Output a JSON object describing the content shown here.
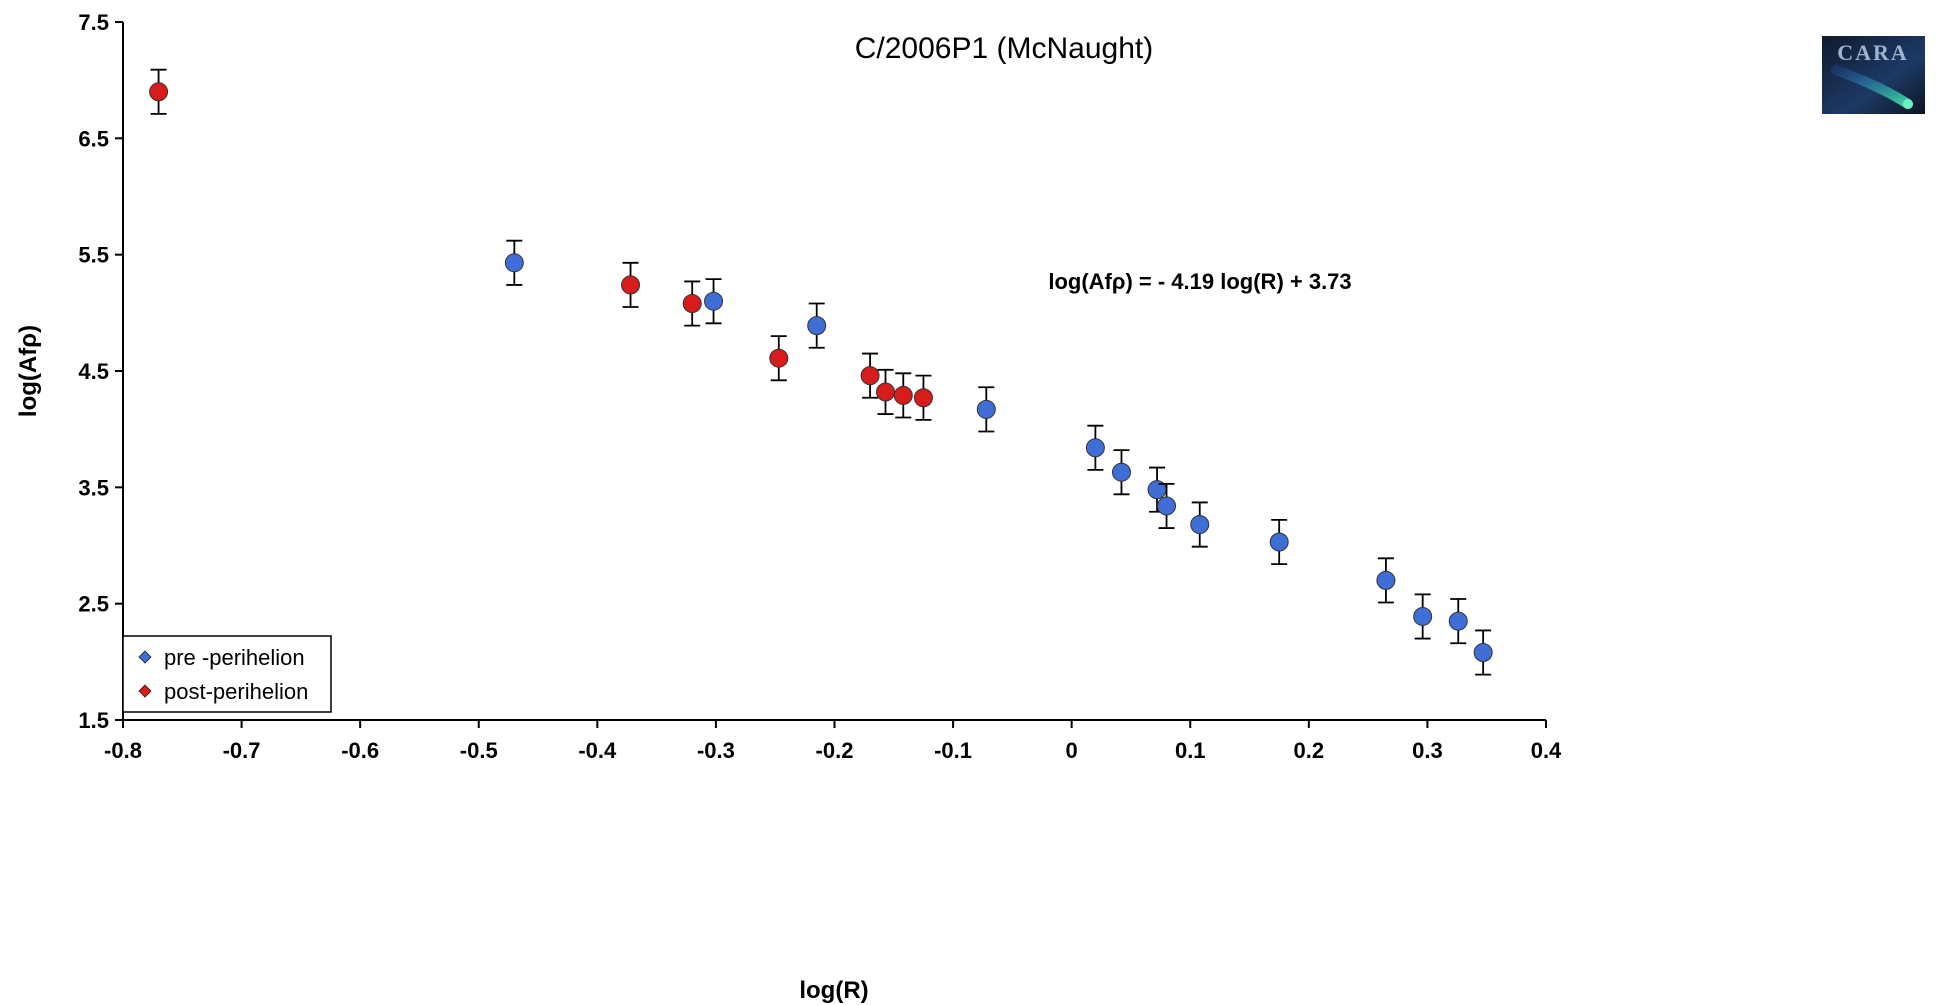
{
  "chart_data": {
    "type": "scatter",
    "title": "C/2006P1 (McNaught)",
    "xlabel": "log(R)",
    "ylabel": "log(Afρ)",
    "xlim": [
      -0.8,
      0.4
    ],
    "ylim": [
      1.5,
      7.5
    ],
    "x_ticks": [
      "-0.8",
      "-0.7",
      "-0.6",
      "-0.5",
      "-0.4",
      "-0.3",
      "-0.2",
      "-0.1",
      "0",
      "0.1",
      "0.2",
      "0.3",
      "0.4"
    ],
    "y_ticks": [
      "1.5",
      "2.5",
      "3.5",
      "4.5",
      "5.5",
      "6.5",
      "7.5"
    ],
    "grid": false,
    "legend_position": "bottom-left",
    "annotation": "log(Afρ) = - 4.19 log(R) + 3.73",
    "logo_text": "CARA",
    "series": [
      {
        "name": "pre -perihelion",
        "color": "#3f6fd6",
        "points": [
          {
            "x": -0.47,
            "y": 5.43,
            "err": 0.19
          },
          {
            "x": -0.302,
            "y": 5.1,
            "err": 0.19
          },
          {
            "x": -0.215,
            "y": 4.89,
            "err": 0.19
          },
          {
            "x": -0.072,
            "y": 4.17,
            "err": 0.19
          },
          {
            "x": 0.02,
            "y": 3.84,
            "err": 0.19
          },
          {
            "x": 0.042,
            "y": 3.63,
            "err": 0.19
          },
          {
            "x": 0.072,
            "y": 3.48,
            "err": 0.19
          },
          {
            "x": 0.08,
            "y": 3.34,
            "err": 0.19
          },
          {
            "x": 0.108,
            "y": 3.18,
            "err": 0.19
          },
          {
            "x": 0.175,
            "y": 3.03,
            "err": 0.19
          },
          {
            "x": 0.265,
            "y": 2.7,
            "err": 0.19
          },
          {
            "x": 0.296,
            "y": 2.39,
            "err": 0.19
          },
          {
            "x": 0.326,
            "y": 2.35,
            "err": 0.19
          },
          {
            "x": 0.347,
            "y": 2.08,
            "err": 0.19
          }
        ]
      },
      {
        "name": "post-perihelion",
        "color": "#d81b1b",
        "points": [
          {
            "x": -0.77,
            "y": 6.9,
            "err": 0.19
          },
          {
            "x": -0.372,
            "y": 5.24,
            "err": 0.19
          },
          {
            "x": -0.32,
            "y": 5.08,
            "err": 0.19
          },
          {
            "x": -0.247,
            "y": 4.61,
            "err": 0.19
          },
          {
            "x": -0.17,
            "y": 4.46,
            "err": 0.19
          },
          {
            "x": -0.157,
            "y": 4.32,
            "err": 0.19
          },
          {
            "x": -0.142,
            "y": 4.29,
            "err": 0.19
          },
          {
            "x": -0.125,
            "y": 4.27,
            "err": 0.19
          }
        ]
      }
    ]
  }
}
